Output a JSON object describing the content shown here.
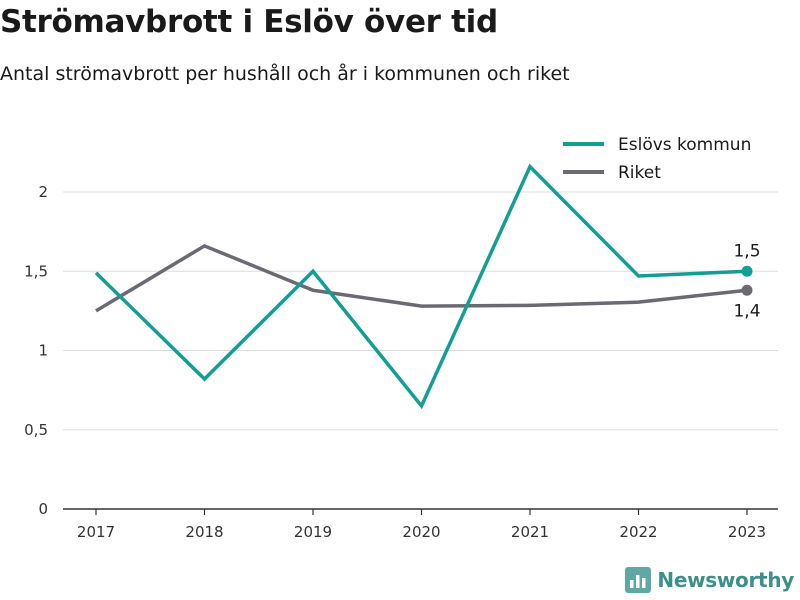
{
  "title": "Strömavbrott i Eslöv över tid",
  "subtitle": "Antal strömavbrott per hushåll och år i kommunen och riket",
  "brand": "Newsworthy",
  "colors": {
    "eslov": "#139e93",
    "riket": "#6b6a72",
    "grid": "#dddddd",
    "axis": "#333333"
  },
  "chart_data": {
    "type": "line",
    "x": [
      "2017",
      "2018",
      "2019",
      "2020",
      "2021",
      "2022",
      "2023"
    ],
    "ylim": [
      0,
      2.3
    ],
    "yticks": [
      0,
      0.5,
      1,
      1.5,
      2
    ],
    "ytick_labels": [
      "0",
      "0,5",
      "1",
      "1,5",
      "2"
    ],
    "grid": true,
    "legend": "top-right",
    "series": [
      {
        "name": "Eslövs kommun",
        "color": "#139e93",
        "values": [
          1.49,
          0.82,
          1.5,
          0.65,
          2.16,
          1.47,
          1.5
        ],
        "end_label": "1,5"
      },
      {
        "name": "Riket",
        "color": "#6b6a72",
        "values": [
          1.25,
          1.66,
          1.38,
          1.28,
          1.285,
          1.305,
          1.38
        ],
        "end_label": "1,4"
      }
    ]
  }
}
